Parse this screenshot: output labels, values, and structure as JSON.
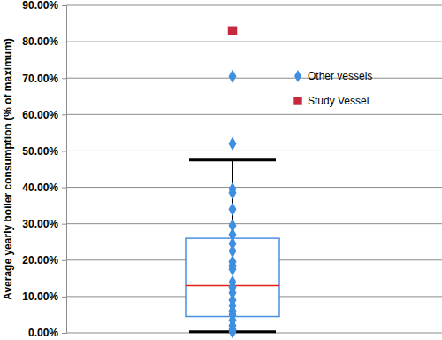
{
  "chart_data": {
    "type": "box",
    "y_label": "Average yearly boiler consumption (% of maximum)",
    "ylim": [
      0,
      90
    ],
    "yticks": [
      {
        "value": 0,
        "label": "0.00%"
      },
      {
        "value": 10,
        "label": "10.00%"
      },
      {
        "value": 20,
        "label": "20.00%"
      },
      {
        "value": 30,
        "label": "30.00%"
      },
      {
        "value": 40,
        "label": "40.00%"
      },
      {
        "value": 50,
        "label": "50.00%"
      },
      {
        "value": 60,
        "label": "60.00%"
      },
      {
        "value": 70,
        "label": "70.00%"
      },
      {
        "value": 80,
        "label": "80.00%"
      },
      {
        "value": 90,
        "label": "90.00%"
      }
    ],
    "grid": true,
    "legend": "right",
    "box": {
      "whisker_low": 0.3,
      "q1": 4.5,
      "median": 13,
      "q3": 26,
      "whisker_high": 47.5
    },
    "series": [
      {
        "name": "Other vessels",
        "color": "#3f8fe0",
        "marker": "diamond",
        "values": [
          70.5,
          52,
          39.5,
          38.5,
          34,
          29.5,
          27,
          24.5,
          22.5,
          19.5,
          18.5,
          17.5,
          14,
          12.5,
          11,
          9,
          7.5,
          6,
          5,
          3.5,
          2,
          1,
          0.3
        ]
      },
      {
        "name": "Study Vessel",
        "color": "#c8283c",
        "marker": "square",
        "values": [
          83
        ]
      }
    ]
  }
}
